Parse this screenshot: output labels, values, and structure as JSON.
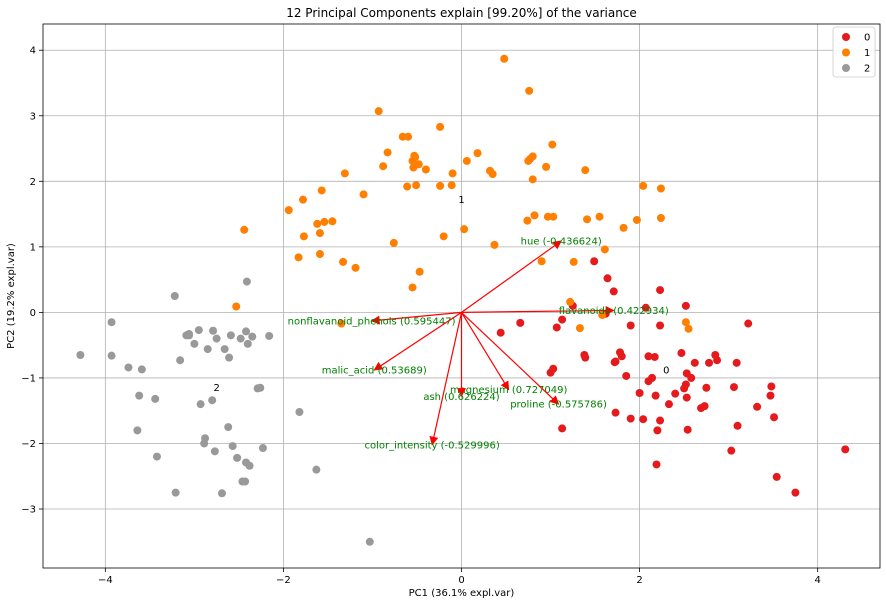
{
  "chart_data": {
    "type": "scatter",
    "title": "12 Principal Components explain [99.20%] of the variance",
    "xlabel": "PC1 (36.1% expl.var)",
    "ylabel": "PC2 (19.2% expl.var)",
    "xlim": [
      -4.7,
      4.7
    ],
    "ylim": [
      -3.9,
      4.4
    ],
    "xticks": [
      -4,
      -2,
      0,
      2,
      4
    ],
    "yticks": [
      -3,
      -2,
      -1,
      0,
      1,
      2,
      3,
      4
    ],
    "xtick_labels": [
      "−4",
      "−2",
      "0",
      "2",
      "4"
    ],
    "ytick_labels": [
      "−3",
      "−2",
      "−1",
      "0",
      "1",
      "2",
      "3",
      "4"
    ],
    "grid": true,
    "legend_position": "top-right",
    "colors": {
      "0": "#e41a1c",
      "1": "#ff7f00",
      "2": "#999999",
      "loading": "#ff0000",
      "loading_text": "#008000"
    },
    "series": [
      {
        "name": "0",
        "color": "#e41a1c",
        "points": [
          [
            4.31,
            -2.09
          ],
          [
            3.75,
            -2.75
          ],
          [
            3.54,
            -2.51
          ],
          [
            3.51,
            -1.6
          ],
          [
            3.48,
            -1.13
          ],
          [
            3.47,
            -1.27
          ],
          [
            3.32,
            -1.44
          ],
          [
            3.22,
            -0.17
          ],
          [
            3.09,
            -0.77
          ],
          [
            3.1,
            -1.73
          ],
          [
            3.06,
            -1.14
          ],
          [
            3.03,
            -2.11
          ],
          [
            2.85,
            -0.65
          ],
          [
            2.87,
            -0.73
          ],
          [
            2.78,
            -0.77
          ],
          [
            2.75,
            -1.15
          ],
          [
            2.73,
            -1.43
          ],
          [
            2.69,
            -1.46
          ],
          [
            2.62,
            -0.77
          ],
          [
            2.58,
            -1.0
          ],
          [
            2.54,
            -1.79
          ],
          [
            2.53,
            -1.3
          ],
          [
            2.53,
            -0.93
          ],
          [
            2.52,
            -1.1
          ],
          [
            2.5,
            -1.16
          ],
          [
            2.52,
            0.1
          ],
          [
            2.47,
            -0.62
          ],
          [
            2.4,
            -1.24
          ],
          [
            2.33,
            -1.4
          ],
          [
            2.23,
            -1.65
          ],
          [
            2.23,
            -0.2
          ],
          [
            2.23,
            0.34
          ],
          [
            2.2,
            -1.8
          ],
          [
            2.19,
            -2.32
          ],
          [
            2.18,
            -1.27
          ],
          [
            2.17,
            -0.68
          ],
          [
            2.14,
            -1.0
          ],
          [
            2.1,
            -1.05
          ],
          [
            2.1,
            -0.67
          ],
          [
            2.07,
            0.07
          ],
          [
            2.04,
            -1.63
          ],
          [
            2.0,
            -1.23
          ],
          [
            1.9,
            -1.62
          ],
          [
            1.9,
            -0.2
          ],
          [
            1.85,
            -0.97
          ],
          [
            1.8,
            -0.67
          ],
          [
            1.78,
            -0.61
          ],
          [
            1.73,
            -0.75
          ],
          [
            1.73,
            -1.53
          ],
          [
            1.72,
            -0.76
          ],
          [
            1.71,
            0.32
          ],
          [
            1.64,
            0.52
          ],
          [
            1.62,
            -0.02
          ],
          [
            1.49,
            0.78
          ],
          [
            1.39,
            -0.69
          ],
          [
            1.38,
            -0.65
          ],
          [
            1.25,
            0.1
          ],
          [
            1.13,
            -0.11
          ],
          [
            1.13,
            -1.77
          ],
          [
            1.07,
            -0.23
          ],
          [
            1.03,
            -0.86
          ],
          [
            1.0,
            -0.92
          ],
          [
            0.66,
            -0.16
          ],
          [
            0.44,
            -0.31
          ]
        ]
      },
      {
        "name": "1",
        "color": "#ff7f00",
        "points": [
          [
            0.48,
            3.87
          ],
          [
            0.76,
            3.38
          ],
          [
            -0.93,
            3.07
          ],
          [
            -0.24,
            2.83
          ],
          [
            -0.6,
            2.68
          ],
          [
            -0.66,
            2.68
          ],
          [
            1.02,
            2.56
          ],
          [
            0.8,
            2.38
          ],
          [
            0.77,
            2.34
          ],
          [
            -0.53,
            2.39
          ],
          [
            -0.55,
            2.31
          ],
          [
            -0.54,
            2.21
          ],
          [
            -0.52,
            2.37
          ],
          [
            -0.48,
            2.26
          ],
          [
            -0.4,
            2.18
          ],
          [
            -1.31,
            2.12
          ],
          [
            -0.88,
            2.23
          ],
          [
            -0.83,
            2.44
          ],
          [
            0.18,
            2.43
          ],
          [
            0.32,
            2.16
          ],
          [
            0.35,
            2.11
          ],
          [
            0.75,
            2.31
          ],
          [
            0.95,
            2.22
          ],
          [
            1.39,
            2.17
          ],
          [
            0.06,
            2.31
          ],
          [
            -0.1,
            2.12
          ],
          [
            -1.1,
            1.8
          ],
          [
            -1.57,
            1.86
          ],
          [
            -1.78,
            1.72
          ],
          [
            -1.94,
            1.56
          ],
          [
            -0.61,
            1.92
          ],
          [
            -0.51,
            1.94
          ],
          [
            -0.24,
            1.93
          ],
          [
            -0.11,
            1.94
          ],
          [
            0.8,
            2.03
          ],
          [
            2.04,
            1.93
          ],
          [
            2.24,
            1.89
          ],
          [
            0.03,
            1.27
          ],
          [
            -0.76,
            1.06
          ],
          [
            -0.2,
            1.16
          ],
          [
            0.37,
            1.03
          ],
          [
            -1.45,
            1.39
          ],
          [
            -1.54,
            1.38
          ],
          [
            -1.62,
            1.35
          ],
          [
            -1.59,
            1.21
          ],
          [
            -1.59,
            0.89
          ],
          [
            -1.77,
            1.16
          ],
          [
            -1.83,
            0.84
          ],
          [
            -2.44,
            1.26
          ],
          [
            -1.33,
            0.77
          ],
          [
            -1.19,
            0.68
          ],
          [
            -0.55,
            0.38
          ],
          [
            -0.47,
            0.62
          ],
          [
            0.74,
            1.4
          ],
          [
            0.82,
            1.48
          ],
          [
            0.97,
            1.46
          ],
          [
            1.03,
            1.46
          ],
          [
            1.41,
            1.42
          ],
          [
            1.55,
            1.46
          ],
          [
            1.82,
            1.29
          ],
          [
            1.97,
            1.41
          ],
          [
            2.24,
            1.44
          ],
          [
            0.9,
            0.78
          ],
          [
            1.26,
            0.77
          ],
          [
            1.61,
            0.96
          ],
          [
            1.58,
            -0.04
          ],
          [
            1.33,
            -0.24
          ],
          [
            1.22,
            0.16
          ],
          [
            -2.53,
            0.09
          ],
          [
            -1.35,
            -0.17
          ],
          [
            2.52,
            -0.15
          ],
          [
            2.55,
            -0.25
          ]
        ]
      },
      {
        "name": "2",
        "color": "#999999",
        "points": [
          [
            -4.28,
            -0.65
          ],
          [
            -3.93,
            -0.15
          ],
          [
            -3.93,
            -0.66
          ],
          [
            -3.74,
            -0.84
          ],
          [
            -3.59,
            -0.87
          ],
          [
            -3.62,
            -1.27
          ],
          [
            -3.64,
            -1.8
          ],
          [
            -3.44,
            -1.32
          ],
          [
            -3.42,
            -2.2
          ],
          [
            -3.22,
            0.25
          ],
          [
            -3.21,
            -2.75
          ],
          [
            -3.16,
            -0.73
          ],
          [
            -3.09,
            -0.35
          ],
          [
            -3.06,
            -0.33
          ],
          [
            -3.06,
            -0.35
          ],
          [
            -3.0,
            -0.48
          ],
          [
            -2.95,
            -0.27
          ],
          [
            -2.93,
            -1.4
          ],
          [
            -2.89,
            -2.0
          ],
          [
            -2.88,
            -1.92
          ],
          [
            -2.85,
            -0.56
          ],
          [
            -2.8,
            -1.34
          ],
          [
            -2.79,
            -0.28
          ],
          [
            -2.77,
            -2.12
          ],
          [
            -2.75,
            -0.4
          ],
          [
            -2.69,
            -2.76
          ],
          [
            -2.66,
            -0.56
          ],
          [
            -2.62,
            -1.75
          ],
          [
            -2.61,
            -0.69
          ],
          [
            -2.59,
            -0.35
          ],
          [
            -2.57,
            -2.04
          ],
          [
            -2.52,
            -2.22
          ],
          [
            -2.48,
            -0.4
          ],
          [
            -2.46,
            -2.58
          ],
          [
            -2.43,
            -2.58
          ],
          [
            -2.42,
            -0.29
          ],
          [
            -2.42,
            -2.29
          ],
          [
            -2.41,
            0.47
          ],
          [
            -2.4,
            -0.48
          ],
          [
            -2.38,
            -2.34
          ],
          [
            -2.35,
            -0.37
          ],
          [
            -2.29,
            -1.16
          ],
          [
            -2.26,
            -1.15
          ],
          [
            -2.23,
            -2.07
          ],
          [
            -2.16,
            -0.36
          ],
          [
            -1.82,
            -1.52
          ],
          [
            -1.63,
            -2.4
          ],
          [
            -1.03,
            -3.5
          ]
        ]
      }
    ],
    "loadings": [
      {
        "label": "hue (-0.436624)",
        "x": 1.12,
        "y": 1.09
      },
      {
        "label": "flavanoids (0.422934)",
        "x": 1.71,
        "y": 0.03
      },
      {
        "label": "nonflavanoid_phenols (0.595447)",
        "x": -1.01,
        "y": -0.13
      },
      {
        "label": "malic_acid (0.53689)",
        "x": -0.98,
        "y": -0.88
      },
      {
        "label": "magnesium (0.727049)",
        "x": 0.53,
        "y": -1.18
      },
      {
        "label": "ash (0.626224)",
        "x": 0.0,
        "y": -1.28
      },
      {
        "label": "proline (-0.575786)",
        "x": 1.09,
        "y": -1.4
      },
      {
        "label": "color_intensity (-0.529996)",
        "x": -0.33,
        "y": -2.02
      }
    ],
    "cluster_labels": [
      {
        "label": "0",
        "x": 2.3,
        "y": -0.93
      },
      {
        "label": "1",
        "x": 0,
        "y": 1.67
      },
      {
        "label": "2",
        "x": -2.75,
        "y": -1.2
      }
    ],
    "legend": [
      "0",
      "1",
      "2"
    ]
  }
}
